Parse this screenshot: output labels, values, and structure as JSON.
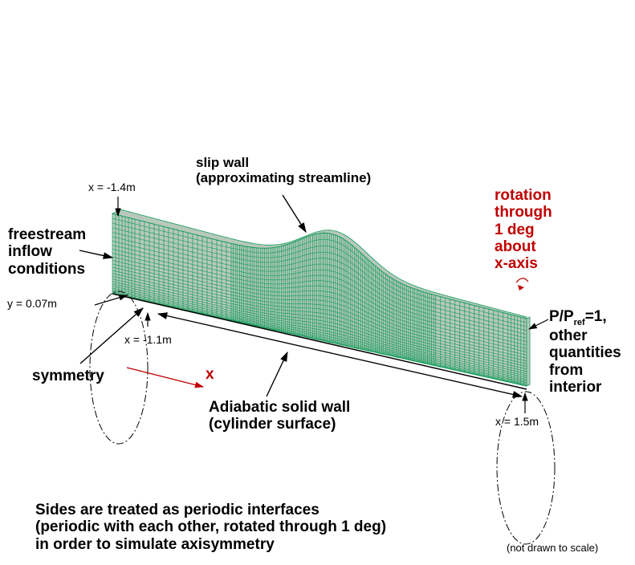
{
  "labels": {
    "slip_wall_line1": "slip wall",
    "slip_wall_line2": "(approximating streamline)",
    "x_minus_1_4": "x = -1.4m",
    "freestream_line1": "freestream",
    "freestream_line2": "inflow",
    "freestream_line3": "conditions",
    "y_007": "y = 0.07m",
    "x_minus_1_1": "x = -1.1m",
    "symmetry": "symmetry",
    "x_axis": "x",
    "adiabatic_line1": "Adiabatic solid wall",
    "adiabatic_line2": "(cylinder surface)",
    "rotation_line1": "rotation",
    "rotation_line2": "through",
    "rotation_line3": "1 deg",
    "rotation_line4": "about",
    "rotation_line5": "x-axis",
    "outflow_p": "P/P",
    "outflow_ref": "ref",
    "outflow_eq": "=1,",
    "outflow_line2": "other",
    "outflow_line3": "quantities",
    "outflow_line4": "from",
    "outflow_line5": "interior",
    "x_1_5": "x = 1.5m",
    "periodic_line1": "Sides are treated as periodic interfaces",
    "periodic_line2": "(periodic with each other, rotated through 1 deg)",
    "periodic_line3": "in order to simulate axisymmetry",
    "not_to_scale": "(not drawn to scale)"
  },
  "colors": {
    "mesh": "#0f9d58",
    "mesh_fill": "#b9c8bd",
    "annotation_red": "#c00000",
    "text": "#000000"
  }
}
